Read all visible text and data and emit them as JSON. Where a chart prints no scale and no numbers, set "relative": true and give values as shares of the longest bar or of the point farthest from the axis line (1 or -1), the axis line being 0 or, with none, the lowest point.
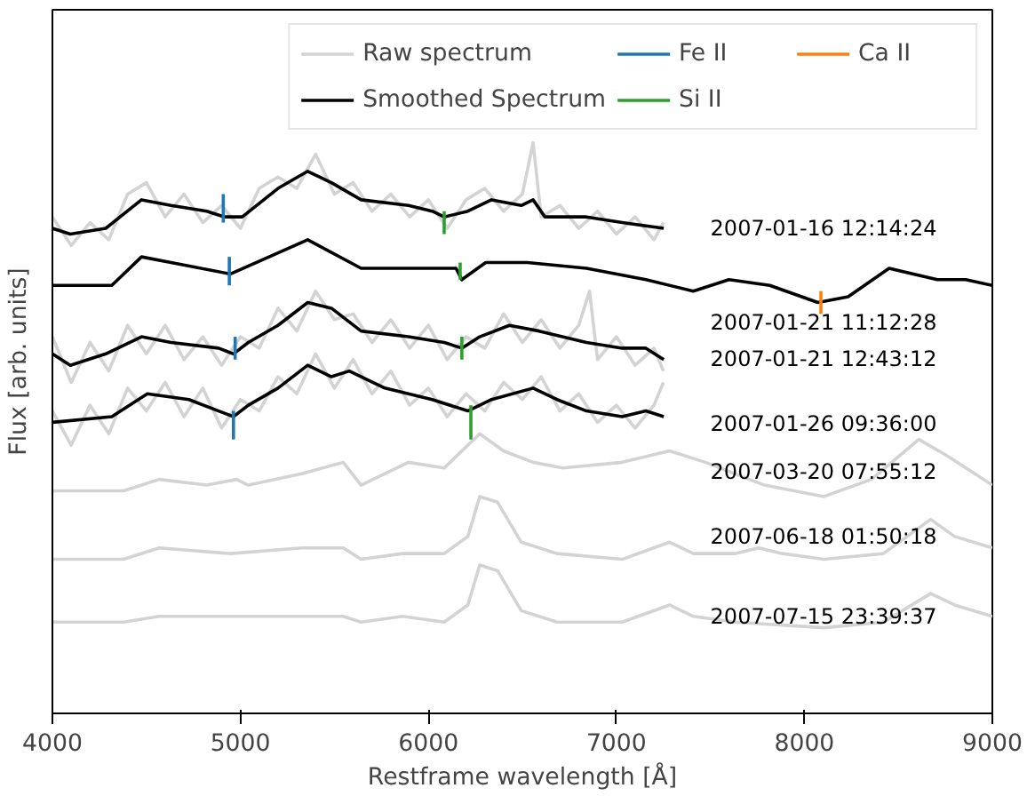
{
  "chart_data": {
    "type": "line",
    "relative": true,
    "xlabel": "Restframe wavelength [Å]",
    "ylabel": "Flux [arb. units]",
    "xlim": [
      4000,
      9000
    ],
    "xticks": [
      4000,
      5000,
      6000,
      7000,
      8000,
      9000
    ],
    "tick_labels": "x",
    "grid": false,
    "legend": "top right",
    "series": [
      {
        "name": "Raw spectrum",
        "color": "#d3d3d3",
        "x": [
          4000,
          4100,
          4200,
          4300,
          4400,
          4500,
          4600,
          4700,
          4800,
          4900,
          5000,
          5100,
          5200,
          5300,
          5400,
          5500,
          5600,
          5700,
          5800,
          5900,
          6000,
          6100,
          6200,
          6300,
          6400,
          6500,
          6557,
          6600,
          6700,
          6800,
          6900,
          7000,
          7100,
          7200,
          7250
        ],
        "values": [
          0.87,
          0.82,
          0.86,
          0.83,
          0.91,
          0.93,
          0.87,
          0.91,
          0.86,
          0.89,
          0.85,
          0.92,
          0.94,
          0.92,
          0.98,
          0.91,
          0.93,
          0.88,
          0.91,
          0.87,
          0.9,
          0.85,
          0.9,
          0.92,
          0.88,
          0.91,
          1.0,
          0.87,
          0.89,
          0.85,
          0.88,
          0.84,
          0.87,
          0.83,
          0.86
        ]
      },
      {
        "color": "#d3d3d3",
        "x": [
          4000,
          4100,
          4200,
          4300,
          4400,
          4500,
          4600,
          4700,
          4800,
          4900,
          5000,
          5100,
          5200,
          5300,
          5400,
          5500,
          5600,
          5700,
          5800,
          5900,
          6000,
          6100,
          6200,
          6300,
          6400,
          6500,
          6600,
          6700,
          6800,
          6857,
          6900,
          7000,
          7100,
          7200,
          7250
        ],
        "values": [
          0.66,
          0.58,
          0.65,
          0.6,
          0.68,
          0.63,
          0.68,
          0.62,
          0.66,
          0.61,
          0.66,
          0.64,
          0.71,
          0.67,
          0.74,
          0.69,
          0.7,
          0.65,
          0.69,
          0.64,
          0.68,
          0.62,
          0.66,
          0.64,
          0.7,
          0.65,
          0.69,
          0.64,
          0.68,
          0.74,
          0.62,
          0.66,
          0.61,
          0.64,
          0.6
        ]
      },
      {
        "color": "#d3d3d3",
        "x": [
          4000,
          4100,
          4200,
          4300,
          4400,
          4500,
          4600,
          4700,
          4800,
          4900,
          5000,
          5100,
          5200,
          5300,
          5400,
          5500,
          5600,
          5700,
          5800,
          5900,
          6000,
          6100,
          6200,
          6300,
          6400,
          6500,
          6600,
          6700,
          6800,
          6900,
          7000,
          7100,
          7200,
          7250
        ],
        "values": [
          0.53,
          0.47,
          0.54,
          0.49,
          0.57,
          0.53,
          0.58,
          0.52,
          0.57,
          0.5,
          0.55,
          0.53,
          0.59,
          0.56,
          0.63,
          0.57,
          0.62,
          0.56,
          0.6,
          0.54,
          0.57,
          0.52,
          0.56,
          0.53,
          0.58,
          0.55,
          0.59,
          0.53,
          0.56,
          0.51,
          0.54,
          0.5,
          0.54,
          0.58
        ]
      },
      {
        "color": "#d3d3d3",
        "x": [
          4000,
          4379,
          4568,
          4821,
          4979,
          5042,
          5326,
          5547,
          5642,
          5894,
          6084,
          6273,
          6399,
          6557,
          6715,
          7031,
          7283,
          7473,
          7788,
          8104,
          8357,
          8609,
          8767,
          9000
        ],
        "values": [
          0.39,
          0.39,
          0.41,
          0.4,
          0.41,
          0.4,
          0.42,
          0.44,
          0.4,
          0.44,
          0.43,
          0.49,
          0.46,
          0.44,
          0.43,
          0.44,
          0.46,
          0.44,
          0.4,
          0.38,
          0.41,
          0.48,
          0.45,
          0.4
        ]
      },
      {
        "color": "#d3d3d3",
        "x": [
          4000,
          4379,
          4568,
          4947,
          5326,
          5547,
          5642,
          5863,
          6084,
          6210,
          6273,
          6368,
          6494,
          6684,
          7031,
          7283,
          7410,
          7631,
          7757,
          7883,
          8104,
          8420,
          8672,
          8799,
          9000
        ],
        "values": [
          0.27,
          0.27,
          0.29,
          0.28,
          0.29,
          0.29,
          0.27,
          0.28,
          0.28,
          0.31,
          0.38,
          0.37,
          0.3,
          0.28,
          0.27,
          0.3,
          0.28,
          0.28,
          0.29,
          0.28,
          0.27,
          0.28,
          0.34,
          0.31,
          0.29
        ]
      },
      {
        "color": "#d3d3d3",
        "x": [
          4000,
          4379,
          4568,
          4947,
          5326,
          5547,
          5642,
          5863,
          6084,
          6210,
          6273,
          6368,
          6494,
          6684,
          7031,
          7283,
          7410,
          7631,
          8104,
          8420,
          8672,
          8799,
          9000
        ],
        "values": [
          0.16,
          0.16,
          0.17,
          0.17,
          0.17,
          0.17,
          0.16,
          0.17,
          0.16,
          0.19,
          0.26,
          0.25,
          0.18,
          0.16,
          0.16,
          0.19,
          0.17,
          0.16,
          0.15,
          0.16,
          0.21,
          0.19,
          0.17
        ]
      },
      {
        "name": "Smoothed Spectrum",
        "color": "#000000",
        "x": [
          4000,
          4095,
          4284,
          4474,
          4631,
          4821,
          4916,
          5010,
          5200,
          5358,
          5484,
          5642,
          5894,
          6020,
          6084,
          6210,
          6336,
          6494,
          6557,
          6620,
          6841,
          7031,
          7252
        ],
        "values": [
          0.85,
          0.84,
          0.85,
          0.9,
          0.89,
          0.88,
          0.87,
          0.87,
          0.92,
          0.95,
          0.93,
          0.9,
          0.89,
          0.88,
          0.87,
          0.88,
          0.9,
          0.89,
          0.9,
          0.87,
          0.87,
          0.86,
          0.85
        ]
      },
      {
        "color": "#000000",
        "x": [
          4000,
          4316,
          4474,
          4631,
          4947,
          5358,
          5642,
          5894,
          6147,
          6178,
          6305,
          6526,
          6841,
          7157,
          7409,
          7599,
          7816,
          8072,
          8233,
          8451,
          8707,
          8858,
          9000
        ],
        "values": [
          0.75,
          0.75,
          0.8,
          0.79,
          0.77,
          0.83,
          0.78,
          0.78,
          0.78,
          0.76,
          0.79,
          0.79,
          0.78,
          0.76,
          0.74,
          0.76,
          0.75,
          0.72,
          0.73,
          0.78,
          0.76,
          0.76,
          0.75
        ]
      },
      {
        "color": "#000000",
        "x": [
          4000,
          4095,
          4284,
          4474,
          4631,
          4884,
          4963,
          5042,
          5200,
          5358,
          5484,
          5642,
          5894,
          6084,
          6178,
          6273,
          6431,
          6589,
          6841,
          7031,
          7157,
          7252
        ],
        "values": [
          0.63,
          0.61,
          0.63,
          0.66,
          0.65,
          0.64,
          0.63,
          0.65,
          0.68,
          0.72,
          0.71,
          0.67,
          0.66,
          0.65,
          0.64,
          0.66,
          0.68,
          0.67,
          0.65,
          0.64,
          0.64,
          0.62
        ]
      },
      {
        "color": "#000000",
        "x": [
          4000,
          4316,
          4505,
          4726,
          4884,
          4963,
          5042,
          5200,
          5358,
          5484,
          5579,
          5768,
          6020,
          6210,
          6336,
          6557,
          6684,
          6841,
          7031,
          7157,
          7252
        ],
        "values": [
          0.51,
          0.52,
          0.56,
          0.55,
          0.53,
          0.52,
          0.54,
          0.57,
          0.61,
          0.59,
          0.6,
          0.57,
          0.55,
          0.53,
          0.55,
          0.57,
          0.55,
          0.53,
          0.52,
          0.53,
          0.52
        ]
      },
      {
        "name": "Fe II",
        "color": "#1f77b4",
        "x": [
          4909,
          4909
        ],
        "values": [
          0.91,
          0.86
        ]
      },
      {
        "color": "#1f77b4",
        "x": [
          4941,
          4941
        ],
        "values": [
          0.8,
          0.75
        ]
      },
      {
        "color": "#1f77b4",
        "x": [
          4972,
          4972
        ],
        "values": [
          0.66,
          0.62
        ]
      },
      {
        "color": "#1f77b4",
        "x": [
          4963,
          4963
        ],
        "values": [
          0.53,
          0.48
        ]
      },
      {
        "name": "Si II",
        "color": "#2ca02c",
        "x": [
          6084,
          6084
        ],
        "values": [
          0.88,
          0.84
        ]
      },
      {
        "color": "#2ca02c",
        "x": [
          6169,
          6169
        ],
        "values": [
          0.79,
          0.76
        ]
      },
      {
        "color": "#2ca02c",
        "x": [
          6178,
          6178
        ],
        "values": [
          0.66,
          0.62
        ]
      },
      {
        "color": "#2ca02c",
        "x": [
          6226,
          6226
        ],
        "values": [
          0.54,
          0.48
        ]
      },
      {
        "name": "Ca II",
        "color": "#ff7f0e",
        "x": [
          8088,
          8088
        ],
        "values": [
          0.74,
          0.7
        ]
      }
    ],
    "annotations": [
      "2007-01-16 12:14:24",
      "2007-01-21 11:12:28",
      "2007-01-21 12:43:12",
      "2007-01-26 09:36:00",
      "2007-03-20 07:55:12",
      "2007-06-18 01:50:18",
      "2007-07-15 23:39:37"
    ]
  }
}
